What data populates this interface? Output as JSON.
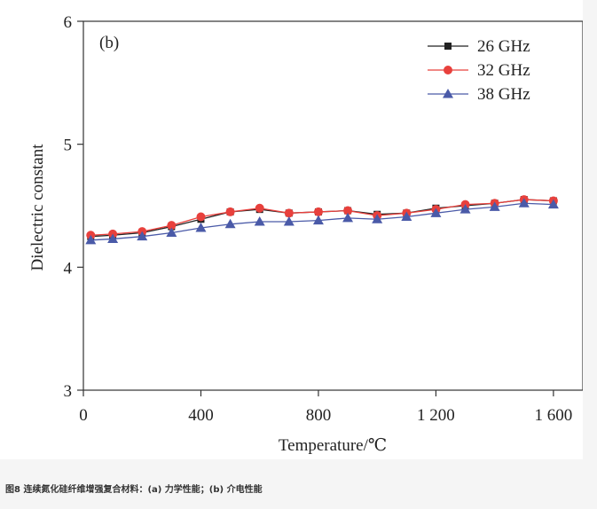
{
  "figure_label": "(b)",
  "caption": "图8 连续氮化硅纤维增强复合材料：(a) 力学性能；(b) 介电性能",
  "chart_data": {
    "type": "line",
    "title": "",
    "xlabel": "Temperature/℃",
    "ylabel": "Dielectric constant",
    "xlim": [
      0,
      1700
    ],
    "ylim": [
      3,
      6
    ],
    "x_ticks": [
      0,
      400,
      800,
      1200,
      1600
    ],
    "x_tick_labels": [
      "0",
      "400",
      "800",
      "1 200",
      "1 600"
    ],
    "y_ticks": [
      3,
      4,
      5,
      6
    ],
    "y_tick_labels": [
      "3",
      "4",
      "5",
      "6"
    ],
    "grid": false,
    "legend_position": "top-right",
    "x": [
      25,
      100,
      200,
      300,
      400,
      500,
      600,
      700,
      800,
      900,
      1000,
      1100,
      1200,
      1300,
      1400,
      1500,
      1600
    ],
    "series": [
      {
        "name": "26 GHz",
        "color": "#222222",
        "marker": "square",
        "values": [
          4.25,
          4.26,
          4.28,
          4.33,
          4.39,
          4.45,
          4.47,
          4.44,
          4.45,
          4.46,
          4.43,
          4.44,
          4.48,
          4.5,
          4.52,
          4.55,
          4.54
        ]
      },
      {
        "name": "32 GHz",
        "color": "#e8403c",
        "marker": "circle",
        "values": [
          4.26,
          4.27,
          4.29,
          4.34,
          4.41,
          4.45,
          4.48,
          4.44,
          4.45,
          4.46,
          4.42,
          4.44,
          4.47,
          4.51,
          4.52,
          4.55,
          4.54
        ]
      },
      {
        "name": "38 GHz",
        "color": "#4a5aa8",
        "marker": "triangle",
        "values": [
          4.22,
          4.23,
          4.25,
          4.28,
          4.32,
          4.35,
          4.37,
          4.37,
          4.38,
          4.4,
          4.39,
          4.41,
          4.44,
          4.47,
          4.49,
          4.52,
          4.51
        ]
      }
    ]
  }
}
